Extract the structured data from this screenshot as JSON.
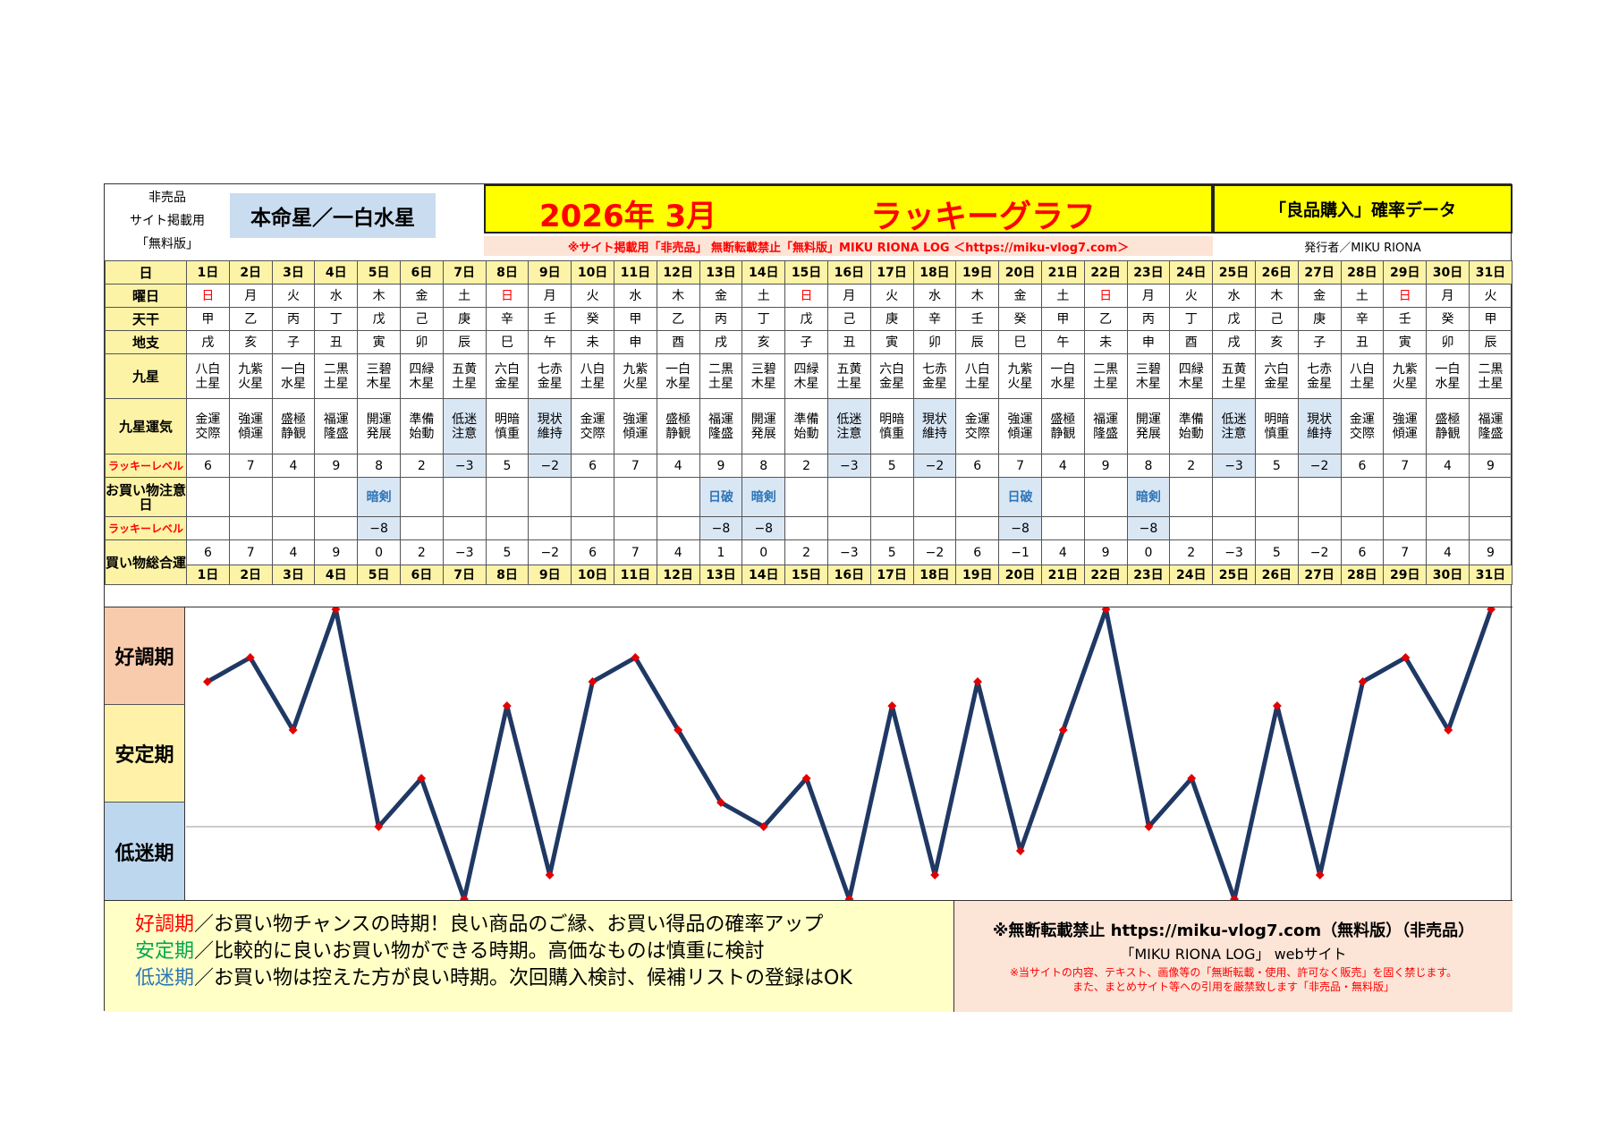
{
  "header": {
    "left_lines": [
      "非売品",
      "サイト掲載用",
      "「無料版」"
    ],
    "honmei": "本命星／一白水星",
    "title_date": "2026年 3月",
    "title_main": "ラッキーグラフ",
    "right_title": "「良品購入」確率データ",
    "notice": "※サイト掲載用「非売品」 無断転載禁止「無料版」MIKU RIONA LOG ＜https://miku-vlog7.com＞",
    "issuer": "発行者／MIKU RIONA"
  },
  "row_labels": {
    "day": "日",
    "weekday": "曜日",
    "tenkan": "天干",
    "chishi": "地支",
    "kyusei": "九星",
    "kyusei_unki": "九星運気",
    "lucky_level": "ラッキーレベル",
    "shopping_caution": "お買い物注意日",
    "lucky_level2": "ラッキーレベル",
    "shopping_total": "買い物総合運"
  },
  "days": [
    "1日",
    "2日",
    "3日",
    "4日",
    "5日",
    "6日",
    "7日",
    "8日",
    "9日",
    "10日",
    "11日",
    "12日",
    "13日",
    "14日",
    "15日",
    "16日",
    "17日",
    "18日",
    "19日",
    "20日",
    "21日",
    "22日",
    "23日",
    "24日",
    "25日",
    "26日",
    "27日",
    "28日",
    "29日",
    "30日",
    "31日"
  ],
  "weekdays": [
    "日",
    "月",
    "火",
    "水",
    "木",
    "金",
    "土",
    "日",
    "月",
    "火",
    "水",
    "木",
    "金",
    "土",
    "日",
    "月",
    "火",
    "水",
    "木",
    "金",
    "土",
    "日",
    "月",
    "火",
    "水",
    "木",
    "金",
    "土",
    "日",
    "月",
    "火"
  ],
  "tenkan": [
    "甲",
    "乙",
    "丙",
    "丁",
    "戊",
    "己",
    "庚",
    "辛",
    "壬",
    "癸",
    "甲",
    "乙",
    "丙",
    "丁",
    "戊",
    "己",
    "庚",
    "辛",
    "壬",
    "癸",
    "甲",
    "乙",
    "丙",
    "丁",
    "戊",
    "己",
    "庚",
    "辛",
    "壬",
    "癸",
    "甲"
  ],
  "chishi": [
    "戌",
    "亥",
    "子",
    "丑",
    "寅",
    "卯",
    "辰",
    "巳",
    "午",
    "未",
    "申",
    "酉",
    "戌",
    "亥",
    "子",
    "丑",
    "寅",
    "卯",
    "辰",
    "巳",
    "午",
    "未",
    "申",
    "酉",
    "戌",
    "亥",
    "子",
    "丑",
    "寅",
    "卯",
    "辰"
  ],
  "kyusei": [
    [
      "八白",
      "土星"
    ],
    [
      "九紫",
      "火星"
    ],
    [
      "一白",
      "水星"
    ],
    [
      "二黒",
      "土星"
    ],
    [
      "三碧",
      "木星"
    ],
    [
      "四緑",
      "木星"
    ],
    [
      "五黄",
      "土星"
    ],
    [
      "六白",
      "金星"
    ],
    [
      "七赤",
      "金星"
    ],
    [
      "八白",
      "土星"
    ],
    [
      "九紫",
      "火星"
    ],
    [
      "一白",
      "水星"
    ],
    [
      "二黒",
      "土星"
    ],
    [
      "三碧",
      "木星"
    ],
    [
      "四緑",
      "木星"
    ],
    [
      "五黄",
      "土星"
    ],
    [
      "六白",
      "金星"
    ],
    [
      "七赤",
      "金星"
    ],
    [
      "八白",
      "土星"
    ],
    [
      "九紫",
      "火星"
    ],
    [
      "一白",
      "水星"
    ],
    [
      "二黒",
      "土星"
    ],
    [
      "三碧",
      "木星"
    ],
    [
      "四緑",
      "木星"
    ],
    [
      "五黄",
      "土星"
    ],
    [
      "六白",
      "金星"
    ],
    [
      "七赤",
      "金星"
    ],
    [
      "八白",
      "土星"
    ],
    [
      "九紫",
      "火星"
    ],
    [
      "一白",
      "水星"
    ],
    [
      "二黒",
      "土星"
    ]
  ],
  "unki": [
    [
      "金運",
      "交際"
    ],
    [
      "強運",
      "傾運"
    ],
    [
      "盛極",
      "静観"
    ],
    [
      "福運",
      "隆盛"
    ],
    [
      "開運",
      "発展"
    ],
    [
      "準備",
      "始動"
    ],
    [
      "低迷",
      "注意"
    ],
    [
      "明暗",
      "慎重"
    ],
    [
      "現状",
      "維持"
    ],
    [
      "金運",
      "交際"
    ],
    [
      "強運",
      "傾運"
    ],
    [
      "盛極",
      "静観"
    ],
    [
      "福運",
      "隆盛"
    ],
    [
      "開運",
      "発展"
    ],
    [
      "準備",
      "始動"
    ],
    [
      "低迷",
      "注意"
    ],
    [
      "明暗",
      "慎重"
    ],
    [
      "現状",
      "維持"
    ],
    [
      "金運",
      "交際"
    ],
    [
      "強運",
      "傾運"
    ],
    [
      "盛極",
      "静観"
    ],
    [
      "福運",
      "隆盛"
    ],
    [
      "開運",
      "発展"
    ],
    [
      "準備",
      "始動"
    ],
    [
      "低迷",
      "注意"
    ],
    [
      "明暗",
      "慎重"
    ],
    [
      "現状",
      "維持"
    ],
    [
      "金運",
      "交際"
    ],
    [
      "強運",
      "傾運"
    ],
    [
      "盛極",
      "静観"
    ],
    [
      "福運",
      "隆盛"
    ]
  ],
  "lucky_level": [
    "6",
    "7",
    "4",
    "9",
    "8",
    "2",
    "−3",
    "5",
    "−2",
    "6",
    "7",
    "4",
    "9",
    "8",
    "2",
    "−3",
    "5",
    "−2",
    "6",
    "7",
    "4",
    "9",
    "8",
    "2",
    "−3",
    "5",
    "−2",
    "6",
    "7",
    "4",
    "9"
  ],
  "caution": [
    "",
    "",
    "",
    "",
    "暗剣",
    "",
    "",
    "",
    "",
    "",
    "",
    "",
    "日破",
    "暗剣",
    "",
    "",
    "",
    "",
    "",
    "日破",
    "",
    "",
    "暗剣",
    "",
    "",
    "",
    "",
    "",
    "",
    "",
    ""
  ],
  "caution_level": [
    "",
    "",
    "",
    "",
    "−8",
    "",
    "",
    "",
    "",
    "",
    "",
    "",
    "−8",
    "−8",
    "",
    "",
    "",
    "",
    "",
    "−8",
    "",
    "",
    "−8",
    "",
    "",
    "",
    "",
    "",
    "",
    "",
    ""
  ],
  "total": [
    "6",
    "7",
    "4",
    "9",
    "0",
    "2",
    "−3",
    "5",
    "−2",
    "6",
    "7",
    "4",
    "1",
    "0",
    "2",
    "−3",
    "5",
    "−2",
    "6",
    "−1",
    "4",
    "9",
    "0",
    "2",
    "−3",
    "5",
    "−2",
    "6",
    "7",
    "4",
    "9"
  ],
  "graph_bands": [
    "好調期",
    "安定期",
    "低迷期"
  ],
  "legend": {
    "k1": "好調期",
    "t1": "／お買い物チャンスの時期！良い商品のご縁、お買い得品の確率アップ",
    "k2": "安定期",
    "t2": "／比較的に良いお買い物ができる時期。高価なものは慎重に検討",
    "k3": "低迷期",
    "t3": "／お買い物は控えた方が良い時期。次回購入検討、候補リストの登録はOK"
  },
  "copyright": {
    "line1": "※無断転載禁止 https://miku-vlog7.com（無料版）（非売品）",
    "line2": "「MIKU RIONA LOG」 webサイト",
    "line3": "※当サイトの内容、テキスト、画像等の「無断転載・使用、許可なく販売」を固く禁じます。",
    "line4": "また、まとめサイト等への引用を厳禁致します「非売品・無料版」"
  },
  "colors": {
    "line": "#1f3864",
    "marker": "#e00000",
    "band_good": "#f8cbad",
    "band_stable": "#fff2a8",
    "band_low": "#bdd7ee",
    "header_yellow": "#ffff00"
  },
  "chart_data": {
    "type": "line",
    "x": [
      "1日",
      "2日",
      "3日",
      "4日",
      "5日",
      "6日",
      "7日",
      "8日",
      "9日",
      "10日",
      "11日",
      "12日",
      "13日",
      "14日",
      "15日",
      "16日",
      "17日",
      "18日",
      "19日",
      "20日",
      "21日",
      "22日",
      "23日",
      "24日",
      "25日",
      "26日",
      "27日",
      "28日",
      "29日",
      "30日",
      "31日"
    ],
    "series": [
      {
        "values": [
          6,
          7,
          4,
          9,
          0,
          2,
          -3,
          5,
          -2,
          6,
          7,
          4,
          1,
          0,
          2,
          -3,
          5,
          -2,
          6,
          -1,
          4,
          9,
          0,
          2,
          -3,
          5,
          -2,
          6,
          7,
          4,
          9
        ]
      }
    ],
    "ylim": [
      -3,
      9
    ],
    "grid": false
  }
}
